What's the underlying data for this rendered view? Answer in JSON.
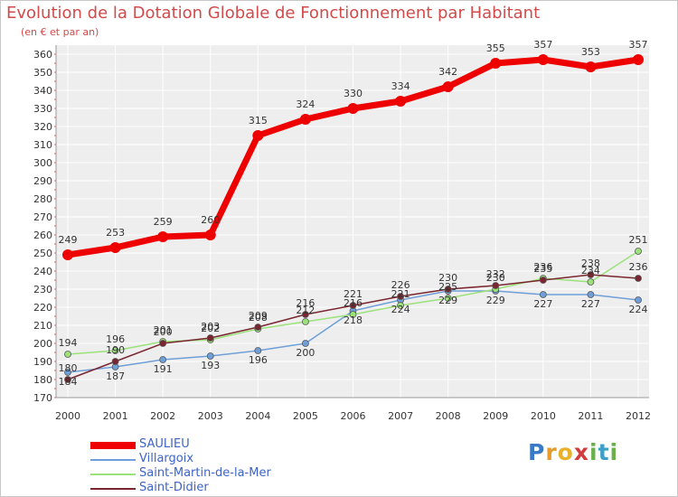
{
  "chart_data": {
    "type": "line",
    "title": "Evolution de la Dotation Globale de Fonctionnement par Habitant",
    "subtitle": "(en € et par an)",
    "xlabel": "",
    "ylabel": "",
    "x": [
      "2000",
      "2001",
      "2002",
      "2003",
      "2004",
      "2005",
      "2006",
      "2007",
      "2008",
      "2009",
      "2010",
      "2011",
      "2012"
    ],
    "ylim": [
      170,
      360
    ],
    "yticks": [
      "170",
      "180",
      "190",
      "200",
      "210",
      "220",
      "230",
      "240",
      "250",
      "260",
      "270",
      "280",
      "290",
      "300",
      "310",
      "320",
      "330",
      "340",
      "350",
      "360"
    ],
    "grid": true,
    "legend_position": "bottom-left",
    "series": [
      {
        "name": "SAULIEU",
        "color": "#ee0000",
        "values": [
          249,
          253,
          259,
          260,
          315,
          324,
          330,
          334,
          342,
          355,
          357,
          353,
          357
        ]
      },
      {
        "name": "Villargoix",
        "color": "#6f9fd8",
        "values": [
          184,
          187,
          191,
          193,
          196,
          200,
          218,
          224,
          229,
          229,
          227,
          227,
          224
        ]
      },
      {
        "name": "Saint-Martin-de-la-Mer",
        "color": "#9be27a",
        "values": [
          194,
          196,
          201,
          202,
          208,
          212,
          216,
          221,
          225,
          230,
          236,
          234,
          251
        ]
      },
      {
        "name": "Saint-Didier",
        "color": "#7a2630",
        "values": [
          180,
          190,
          200,
          203,
          209,
          216,
          221,
          226,
          230,
          232,
          235,
          238,
          236
        ]
      }
    ]
  },
  "brand": {
    "letters": [
      "P",
      "r",
      "o",
      "x",
      "i",
      "t",
      "i"
    ],
    "colors": [
      "#3a78c8",
      "#e89a2a",
      "#e8b12a",
      "#d23c3c",
      "#6ab04c",
      "#3aa0c8",
      "#6ab04c"
    ]
  }
}
